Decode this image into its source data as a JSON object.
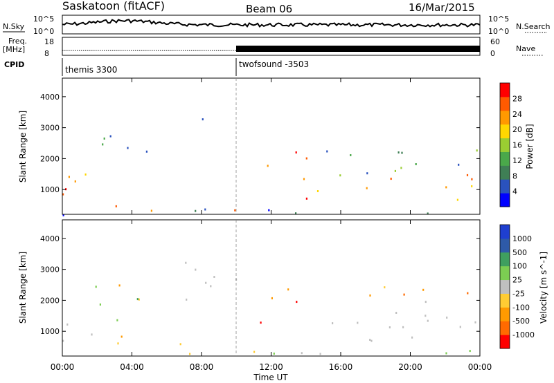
{
  "header": {
    "station": "Saskatoon (fitACF)",
    "beam": "Beam 06",
    "date": "16/Mar/2015"
  },
  "top_panels": {
    "nsky_label": "N.Sky",
    "nsearch_label": "N.Search",
    "count_tick_top": "10^5",
    "count_tick_bottom": "10^0",
    "freq_label": "Freq.",
    "freq_unit": "[MHz]",
    "freq_ticks": [
      "18",
      "8"
    ],
    "nave_label": "Nave",
    "nave_ticks": [
      "60",
      "0"
    ],
    "cpid_label": "CPID",
    "cpid_segments": [
      {
        "name": "themis 3300",
        "start_hour": 0
      },
      {
        "name": "twofsound -3503",
        "start_hour": 10
      }
    ]
  },
  "colors": {
    "power_scale": [
      "#0000ff",
      "#2a52be",
      "#3f7f55",
      "#4aa84a",
      "#9acd32",
      "#ffd700",
      "#ff9900",
      "#ff5a00",
      "#ff0000"
    ],
    "velocity_scale": [
      "#ff0000",
      "#ff6a00",
      "#ff9a00",
      "#ffcc33",
      "#bfbfbf",
      "#7ccd52",
      "#3f9f5f",
      "#2e5aa8",
      "#1f3fd0"
    ],
    "ground_scatter": "#bdbdbd"
  },
  "chart_data": [
    {
      "type": "heatmap",
      "name": "power",
      "ylabel": "Slant Range [km]",
      "colorbar_label": "Power [dB]",
      "colorbar_ticks": [
        "28",
        "24",
        "20",
        "16",
        "12",
        "8",
        "4"
      ],
      "yticks": [
        "4000",
        "3000",
        "2000",
        "1000"
      ],
      "ylim": [
        200,
        4600
      ],
      "xlim": [
        0,
        24
      ],
      "legend": "right",
      "grid": false
    },
    {
      "type": "heatmap",
      "name": "velocity",
      "ylabel": "Slant Range [km]",
      "colorbar_label": "Velocity [m s^-1]",
      "colorbar_ticks": [
        "1000",
        "500",
        "100",
        "25",
        "-25",
        "-100",
        "-500",
        "-1000"
      ],
      "yticks": [
        "4000",
        "3000",
        "2000",
        "1000"
      ],
      "ylim": [
        200,
        4600
      ],
      "xlim": [
        0,
        24
      ],
      "legend": "right",
      "grid": false
    }
  ],
  "x_axis": {
    "ticks": [
      "00:00",
      "04:00",
      "08:00",
      "12:00",
      "16:00",
      "20:00",
      "00:00"
    ],
    "tick_hours": [
      0,
      4,
      8,
      12,
      16,
      20,
      24
    ],
    "label": "Time UT"
  }
}
